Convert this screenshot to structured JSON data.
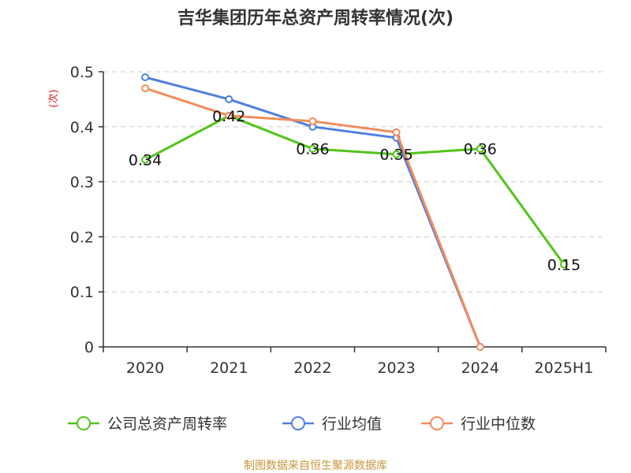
{
  "chart_data": {
    "type": "line",
    "title": "吉华集团历年总资产周转率情况(次)",
    "ylabel": "(次)",
    "xlabel": "",
    "categories": [
      "2020",
      "2021",
      "2022",
      "2023",
      "2024",
      "2025H1"
    ],
    "ylim": [
      0,
      0.5
    ],
    "yticks": [
      "0",
      "0.1",
      "0.2",
      "0.3",
      "0.4",
      "0.5"
    ],
    "grid": true,
    "legend_position": "bottom",
    "series": [
      {
        "name": "公司总资产周转率",
        "color": "#52c41a",
        "values": [
          0.34,
          0.42,
          0.36,
          0.35,
          0.36,
          0.15
        ],
        "labels": [
          "0.34",
          "0.42",
          "0.36",
          "0.35",
          "0.36",
          "0.15"
        ]
      },
      {
        "name": "行业均值",
        "color": "#4f7fdc",
        "values": [
          0.49,
          0.45,
          0.4,
          0.38,
          0.0,
          null
        ]
      },
      {
        "name": "行业中位数",
        "color": "#f28c5b",
        "values": [
          0.47,
          0.42,
          0.41,
          0.39,
          0.0,
          null
        ]
      }
    ]
  },
  "source": "制图数据来自恒生聚源数据库",
  "colors": {
    "source_text": "#c8963e",
    "ylabel_text": "#e02020",
    "axis": "#333333",
    "grid": "#cccccc"
  }
}
